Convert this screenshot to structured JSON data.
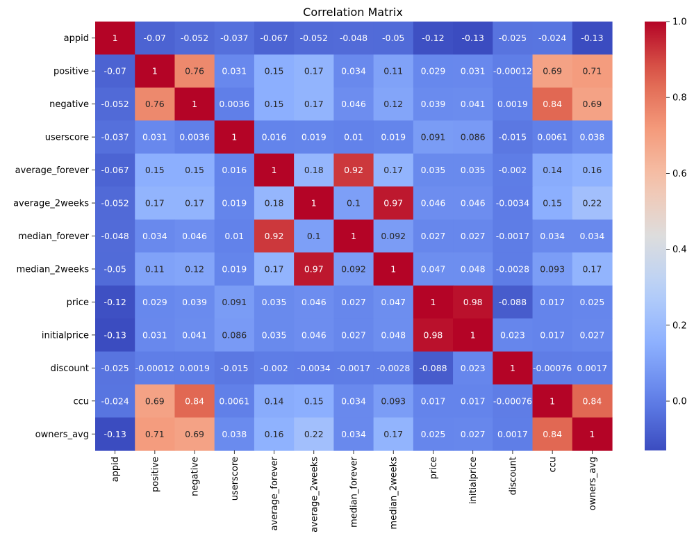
{
  "chart_data": {
    "type": "heatmap",
    "title": "Correlation Matrix",
    "xlabel": "",
    "ylabel": "",
    "labels": [
      "appid",
      "positive",
      "negative",
      "userscore",
      "average_forever",
      "average_2weeks",
      "median_forever",
      "median_2weeks",
      "price",
      "initialprice",
      "discount",
      "ccu",
      "owners_avg"
    ],
    "values": [
      [
        1,
        -0.07,
        -0.052,
        -0.037,
        -0.067,
        -0.052,
        -0.048,
        -0.05,
        -0.12,
        -0.13,
        -0.025,
        -0.024,
        -0.13
      ],
      [
        -0.07,
        1,
        0.76,
        0.031,
        0.15,
        0.17,
        0.034,
        0.11,
        0.029,
        0.031,
        -0.00012,
        0.69,
        0.71
      ],
      [
        -0.052,
        0.76,
        1,
        0.0036,
        0.15,
        0.17,
        0.046,
        0.12,
        0.039,
        0.041,
        0.0019,
        0.84,
        0.69
      ],
      [
        -0.037,
        0.031,
        0.0036,
        1,
        0.016,
        0.019,
        0.01,
        0.019,
        0.091,
        0.086,
        -0.015,
        0.0061,
        0.038
      ],
      [
        -0.067,
        0.15,
        0.15,
        0.016,
        1,
        0.18,
        0.92,
        0.17,
        0.035,
        0.035,
        -0.002,
        0.14,
        0.16
      ],
      [
        -0.052,
        0.17,
        0.17,
        0.019,
        0.18,
        1,
        0.1,
        0.97,
        0.046,
        0.046,
        -0.0034,
        0.15,
        0.22
      ],
      [
        -0.048,
        0.034,
        0.046,
        0.01,
        0.92,
        0.1,
        1,
        0.092,
        0.027,
        0.027,
        -0.0017,
        0.034,
        0.034
      ],
      [
        -0.05,
        0.11,
        0.12,
        0.019,
        0.17,
        0.97,
        0.092,
        1,
        0.047,
        0.048,
        -0.0028,
        0.093,
        0.17
      ],
      [
        -0.12,
        0.029,
        0.039,
        0.091,
        0.035,
        0.046,
        0.027,
        0.047,
        1,
        0.98,
        -0.088,
        0.017,
        0.025
      ],
      [
        -0.13,
        0.031,
        0.041,
        0.086,
        0.035,
        0.046,
        0.027,
        0.048,
        0.98,
        1,
        0.023,
        0.017,
        0.027
      ],
      [
        -0.025,
        -0.00012,
        0.0019,
        -0.015,
        -0.002,
        -0.0034,
        -0.0017,
        -0.0028,
        -0.088,
        0.023,
        1,
        -0.00076,
        0.0017
      ],
      [
        -0.024,
        0.69,
        0.84,
        0.0061,
        0.14,
        0.15,
        0.034,
        0.093,
        0.017,
        0.017,
        -0.00076,
        1,
        0.84
      ],
      [
        -0.13,
        0.71,
        0.69,
        0.038,
        0.16,
        0.22,
        0.034,
        0.17,
        0.025,
        0.027,
        0.0017,
        0.84,
        1
      ]
    ],
    "colormap": "coolwarm",
    "vmin": -0.13,
    "vmax": 1,
    "colorbar_ticks": [
      "0.0",
      "0.2",
      "0.4",
      "0.6",
      "0.8",
      "1.0"
    ],
    "colorbar_tick_values": [
      0,
      0.2,
      0.4,
      0.6,
      0.8,
      1.0
    ],
    "annotations": true,
    "grid": false,
    "legend": "colorbar-right"
  },
  "colors": {
    "background": "#ffffff",
    "text_dark": "#262626",
    "text_light": "#ffffff"
  }
}
